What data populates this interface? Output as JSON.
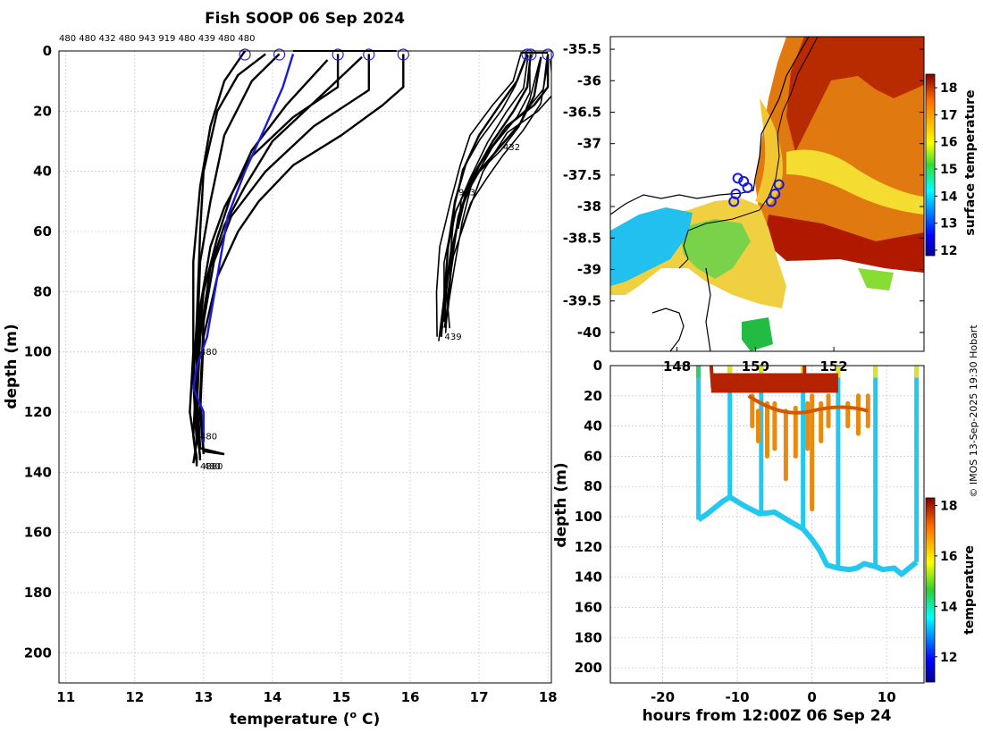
{
  "title": "Fish SOOP 06 Sep 2024",
  "credit": "© IMOS 13-Sep-2025 19:30 Hobart",
  "chart_data": [
    {
      "type": "line",
      "id": "profiles",
      "xlabel": "temperature (",
      "xlabel_sup": "o",
      "xlabel_end": " C)",
      "ylabel": "depth (m)",
      "xlim": [
        10.9,
        18.05
      ],
      "ylim": [
        0,
        210
      ],
      "xticks": [
        11,
        12,
        13,
        14,
        15,
        16,
        17,
        18
      ],
      "yticks": [
        0,
        20,
        40,
        60,
        80,
        100,
        120,
        140,
        160,
        180,
        200
      ],
      "grid": true,
      "top_labels": "480 480 432 480 943 919 480 439 480 480",
      "cast_start_temps": [
        13.6,
        14.1,
        14.95,
        15.4,
        15.9,
        17.7,
        17.75,
        18.0
      ],
      "series": [
        {
          "name": "c1",
          "color": "#000000",
          "points": [
            [
              13.6,
              0
            ],
            [
              13.3,
              10
            ],
            [
              13.1,
              25
            ],
            [
              12.95,
              45
            ],
            [
              12.85,
              70
            ],
            [
              12.85,
              100
            ],
            [
              12.8,
              120
            ],
            [
              12.9,
              135
            ],
            [
              12.9,
              138
            ]
          ]
        },
        {
          "name": "c2",
          "color": "#000000",
          "points": [
            [
              13.9,
              1
            ],
            [
              13.5,
              8
            ],
            [
              13.2,
              20
            ],
            [
              13.0,
              40
            ],
            [
              12.95,
              60
            ],
            [
              12.9,
              90
            ],
            [
              12.85,
              110
            ],
            [
              12.9,
              130
            ],
            [
              12.85,
              137
            ]
          ]
        },
        {
          "name": "c3",
          "color": "#000000",
          "points": [
            [
              14.1,
              1
            ],
            [
              13.7,
              10
            ],
            [
              13.3,
              28
            ],
            [
              13.1,
              50
            ],
            [
              12.95,
              70
            ],
            [
              12.9,
              100
            ],
            [
              12.9,
              125
            ],
            [
              12.95,
              135
            ]
          ]
        },
        {
          "name": "c4",
          "color": "#000000",
          "points": [
            [
              14.95,
              1
            ],
            [
              14.95,
              12
            ],
            [
              14.3,
              22
            ],
            [
              13.7,
              35
            ],
            [
              13.3,
              52
            ],
            [
              13.1,
              65
            ],
            [
              12.95,
              85
            ],
            [
              12.9,
              110
            ],
            [
              12.95,
              132
            ],
            [
              13.3,
              134
            ]
          ]
        },
        {
          "name": "c5",
          "color": "#000000",
          "points": [
            [
              15.4,
              1
            ],
            [
              15.4,
              13
            ],
            [
              14.6,
              25
            ],
            [
              13.9,
              40
            ],
            [
              13.4,
              55
            ],
            [
              13.15,
              70
            ],
            [
              13.0,
              90
            ],
            [
              12.95,
              115
            ],
            [
              13.0,
              133
            ],
            [
              13.3,
              134
            ]
          ]
        },
        {
          "name": "c6",
          "color": "#000000",
          "points": [
            [
              15.9,
              1
            ],
            [
              15.9,
              12
            ],
            [
              15.6,
              18
            ],
            [
              15.0,
              28
            ],
            [
              14.3,
              38
            ],
            [
              13.8,
              50
            ],
            [
              13.5,
              60
            ],
            [
              13.2,
              75
            ],
            [
              13.0,
              95
            ],
            [
              12.95,
              120
            ],
            [
              13.0,
              134
            ]
          ]
        },
        {
          "name": "c7",
          "color": "#000000",
          "points": [
            [
              15.3,
              2
            ],
            [
              14.7,
              15
            ],
            [
              14.0,
              30
            ],
            [
              13.6,
              45
            ],
            [
              13.3,
              58
            ],
            [
              13.1,
              72
            ],
            [
              12.95,
              95
            ],
            [
              12.9,
              120
            ],
            [
              12.95,
              136
            ]
          ]
        },
        {
          "name": "c8",
          "color": "#000000",
          "points": [
            [
              14.8,
              3
            ],
            [
              14.2,
              18
            ],
            [
              13.7,
              33
            ],
            [
              13.4,
              48
            ],
            [
              13.2,
              62
            ],
            [
              13.0,
              80
            ],
            [
              12.9,
              105
            ],
            [
              12.85,
              128
            ],
            [
              12.9,
              137
            ]
          ]
        },
        {
          "name": "c9",
          "color": "#000000",
          "points": [
            [
              17.7,
              1
            ],
            [
              17.55,
              10
            ],
            [
              17.3,
              18
            ],
            [
              17.0,
              28
            ],
            [
              16.8,
              38
            ],
            [
              16.65,
              50
            ],
            [
              16.55,
              65
            ],
            [
              16.5,
              80
            ],
            [
              16.45,
              95
            ]
          ]
        },
        {
          "name": "c10",
          "color": "#000000",
          "points": [
            [
              17.75,
              1
            ],
            [
              17.7,
              12
            ],
            [
              17.5,
              20
            ],
            [
              17.2,
              30
            ],
            [
              16.9,
              42
            ],
            [
              16.7,
              55
            ],
            [
              16.6,
              70
            ],
            [
              16.55,
              85
            ],
            [
              16.5,
              92
            ]
          ]
        },
        {
          "name": "c11",
          "color": "#000000",
          "points": [
            [
              18.0,
              1
            ],
            [
              18.0,
              12
            ],
            [
              17.8,
              18
            ],
            [
              17.4,
              25
            ],
            [
              17.0,
              38
            ],
            [
              16.75,
              52
            ],
            [
              16.6,
              66
            ],
            [
              16.52,
              80
            ],
            [
              16.5,
              90
            ]
          ]
        },
        {
          "name": "c12",
          "color": "#000000",
          "points": [
            [
              17.9,
              2
            ],
            [
              17.8,
              15
            ],
            [
              17.6,
              24
            ],
            [
              17.3,
              32
            ],
            [
              17.0,
              40
            ],
            [
              16.8,
              48
            ],
            [
              16.7,
              58
            ]
          ]
        },
        {
          "name": "mean",
          "color": "#1a1adb",
          "points": [
            [
              14.3,
              1
            ],
            [
              14.15,
              12
            ],
            [
              13.9,
              25
            ],
            [
              13.6,
              40
            ],
            [
              13.35,
              55
            ],
            [
              13.2,
              75
            ],
            [
              13.05,
              95
            ],
            [
              12.9,
              105
            ],
            [
              12.85,
              112
            ],
            [
              13.0,
              120
            ],
            [
              13.0,
              130
            ]
          ]
        }
      ],
      "annotations": [
        {
          "text": "480",
          "x": 12.95,
          "y": 101
        },
        {
          "text": "480",
          "x": 12.95,
          "y": 129
        },
        {
          "text": "480",
          "x": 13.0,
          "y": 139
        },
        {
          "text": "4880",
          "x": 12.95,
          "y": 139
        },
        {
          "text": "432",
          "x": 17.35,
          "y": 33
        },
        {
          "text": "943",
          "x": 16.7,
          "y": 48
        },
        {
          "text": "439",
          "x": 16.5,
          "y": 96
        }
      ]
    },
    {
      "type": "heatmap",
      "id": "map",
      "xlim": [
        146.3,
        154.3
      ],
      "ylim": [
        -40.3,
        -35.3
      ],
      "yticks": [
        -35.5,
        -36,
        -36.5,
        -37,
        -37.5,
        -38,
        -38.5,
        -39,
        -39.5,
        -40
      ],
      "ytick_labels": [
        "-35.5",
        "-36",
        "-36.5",
        "-37",
        "-37.5",
        "-38",
        "-38.5",
        "-39",
        "-39.5",
        "-40"
      ],
      "xticks": [
        148,
        150,
        152
      ],
      "xtick_labels": [
        "148",
        "150",
        "152"
      ],
      "colorbar_label": "surface temperature",
      "colorbar_range": [
        11.8,
        18.5
      ],
      "colorbar_ticks": [
        12,
        13,
        14,
        15,
        16,
        17,
        18
      ],
      "stations": [
        [
          149.55,
          -37.55
        ],
        [
          149.7,
          -37.6
        ],
        [
          149.8,
          -37.7
        ],
        [
          149.5,
          -37.8
        ],
        [
          149.45,
          -37.92
        ],
        [
          150.6,
          -37.65
        ],
        [
          150.5,
          -37.8
        ],
        [
          150.4,
          -37.92
        ]
      ]
    },
    {
      "type": "scatter",
      "id": "timeseries",
      "xlabel": "hours from 12:00Z 06 Sep 24",
      "ylabel": "depth (m)",
      "xlim": [
        -27,
        15
      ],
      "ylim": [
        0,
        210
      ],
      "xticks": [
        -20,
        -10,
        0,
        10
      ],
      "yticks": [
        0,
        20,
        40,
        60,
        80,
        100,
        120,
        140,
        160,
        180,
        200
      ],
      "colorbar_label": "temperature",
      "colorbar_range": [
        11,
        18.3
      ],
      "colorbar_ticks": [
        12,
        14,
        16,
        18
      ],
      "casts": [
        -15.2,
        -11,
        -6.8,
        -1.2,
        3.5,
        8.5,
        14
      ],
      "bottom": [
        [
          -15.2,
          102
        ],
        [
          -14,
          98
        ],
        [
          -12,
          90
        ],
        [
          -11,
          87
        ],
        [
          -9,
          93
        ],
        [
          -7,
          98
        ],
        [
          -5,
          97
        ],
        [
          -3,
          103
        ],
        [
          -1.2,
          108
        ],
        [
          0,
          115
        ],
        [
          1,
          122
        ],
        [
          2,
          132
        ],
        [
          3.5,
          134
        ],
        [
          5,
          135
        ],
        [
          6,
          134
        ],
        [
          7,
          131
        ],
        [
          8.5,
          133
        ],
        [
          9.5,
          135
        ],
        [
          11,
          134
        ],
        [
          12,
          138
        ],
        [
          13,
          134
        ],
        [
          14,
          130
        ]
      ]
    }
  ]
}
